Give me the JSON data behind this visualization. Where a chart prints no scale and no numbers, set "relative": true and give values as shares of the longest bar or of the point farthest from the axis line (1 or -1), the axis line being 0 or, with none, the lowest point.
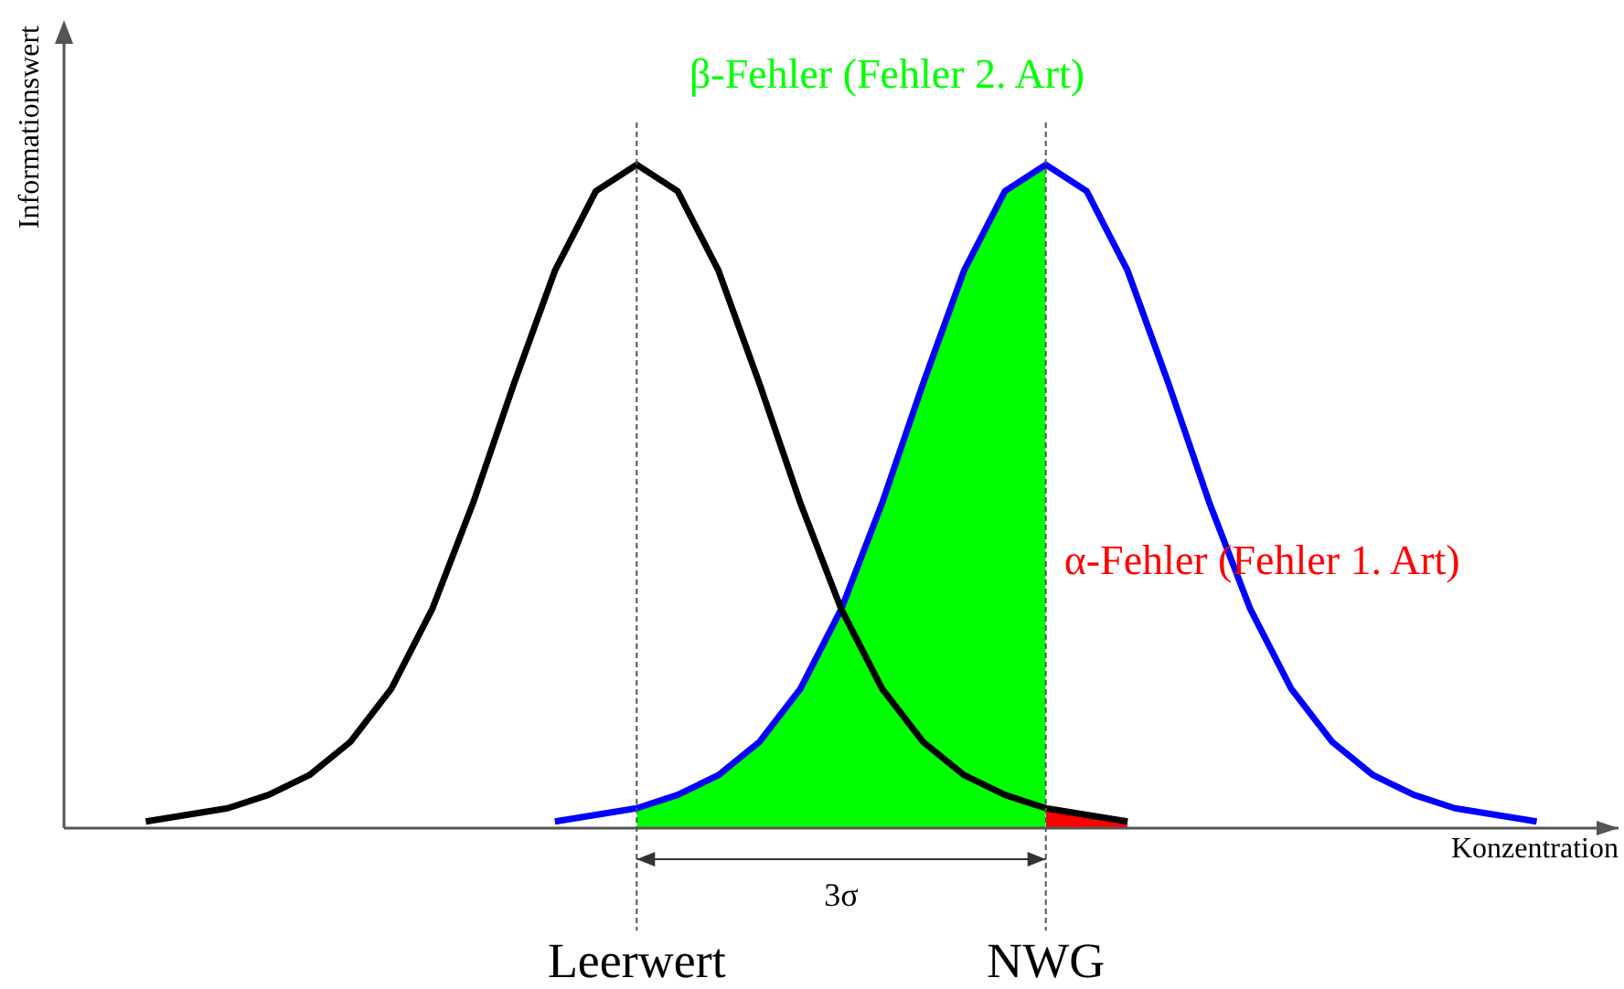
{
  "chart_data": {
    "type": "line",
    "relative": true,
    "xlabel": "Konzentration",
    "ylabel": "Informationswert",
    "legend": false,
    "categories": [
      null,
      null,
      null,
      null,
      null,
      null,
      null,
      null,
      null,
      null,
      null,
      null,
      null,
      null,
      "Leerwert",
      null,
      null,
      null,
      null,
      null,
      null,
      null,
      null,
      null,
      "NWG",
      null,
      null,
      null,
      null,
      null,
      null,
      null,
      null,
      null,
      null,
      null,
      null,
      null,
      null
    ],
    "series": [
      {
        "color": "#000000",
        "values": [
          null,
          null,
          0.01,
          0.02,
          0.03,
          0.05,
          0.08,
          0.13,
          0.21,
          0.33,
          0.49,
          0.67,
          0.84,
          0.96,
          1,
          0.96,
          0.84,
          0.67,
          0.49,
          0.33,
          0.21,
          0.13,
          0.08,
          0.05,
          0.03,
          0.02,
          0.01,
          null,
          null,
          null,
          null,
          null,
          null,
          null,
          null,
          null,
          null,
          null,
          null
        ]
      },
      {
        "color": "#0000ff",
        "values": [
          null,
          null,
          null,
          null,
          null,
          null,
          null,
          null,
          null,
          null,
          null,
          null,
          0.01,
          0.02,
          0.03,
          0.05,
          0.08,
          0.13,
          0.21,
          0.33,
          0.49,
          0.67,
          0.84,
          0.96,
          1,
          0.96,
          0.84,
          0.67,
          0.49,
          0.33,
          0.21,
          0.13,
          0.08,
          0.05,
          0.03,
          0.02,
          0.01,
          null,
          null
        ]
      },
      {
        "type": "area",
        "name": "β-Fehler (Fehler 2. Art)",
        "color": "#00ff00",
        "values": [
          null,
          null,
          null,
          null,
          null,
          null,
          null,
          null,
          null,
          null,
          null,
          null,
          null,
          null,
          0.03,
          0.05,
          0.08,
          0.13,
          0.21,
          0.33,
          0.49,
          0.67,
          0.84,
          0.96,
          1,
          null,
          null,
          null,
          null,
          null,
          null,
          null,
          null,
          null,
          null,
          null,
          null,
          null,
          null
        ]
      },
      {
        "type": "area",
        "name": "α-Fehler (Fehler 1. Art)",
        "color": "#ff0000",
        "values": [
          null,
          null,
          null,
          null,
          null,
          null,
          null,
          null,
          null,
          null,
          null,
          null,
          null,
          null,
          null,
          null,
          null,
          null,
          null,
          null,
          null,
          null,
          null,
          null,
          0.03,
          0.02,
          0.01,
          null,
          null,
          null,
          null,
          null,
          null,
          null,
          null,
          null,
          null,
          null,
          null
        ]
      }
    ],
    "ref_lines": [
      {
        "axis": "x",
        "value": "Leerwert",
        "line_style": "dashed"
      },
      {
        "axis": "x",
        "value": "NWG",
        "line_style": "dashed"
      }
    ],
    "annotations": [
      "3σ"
    ]
  }
}
